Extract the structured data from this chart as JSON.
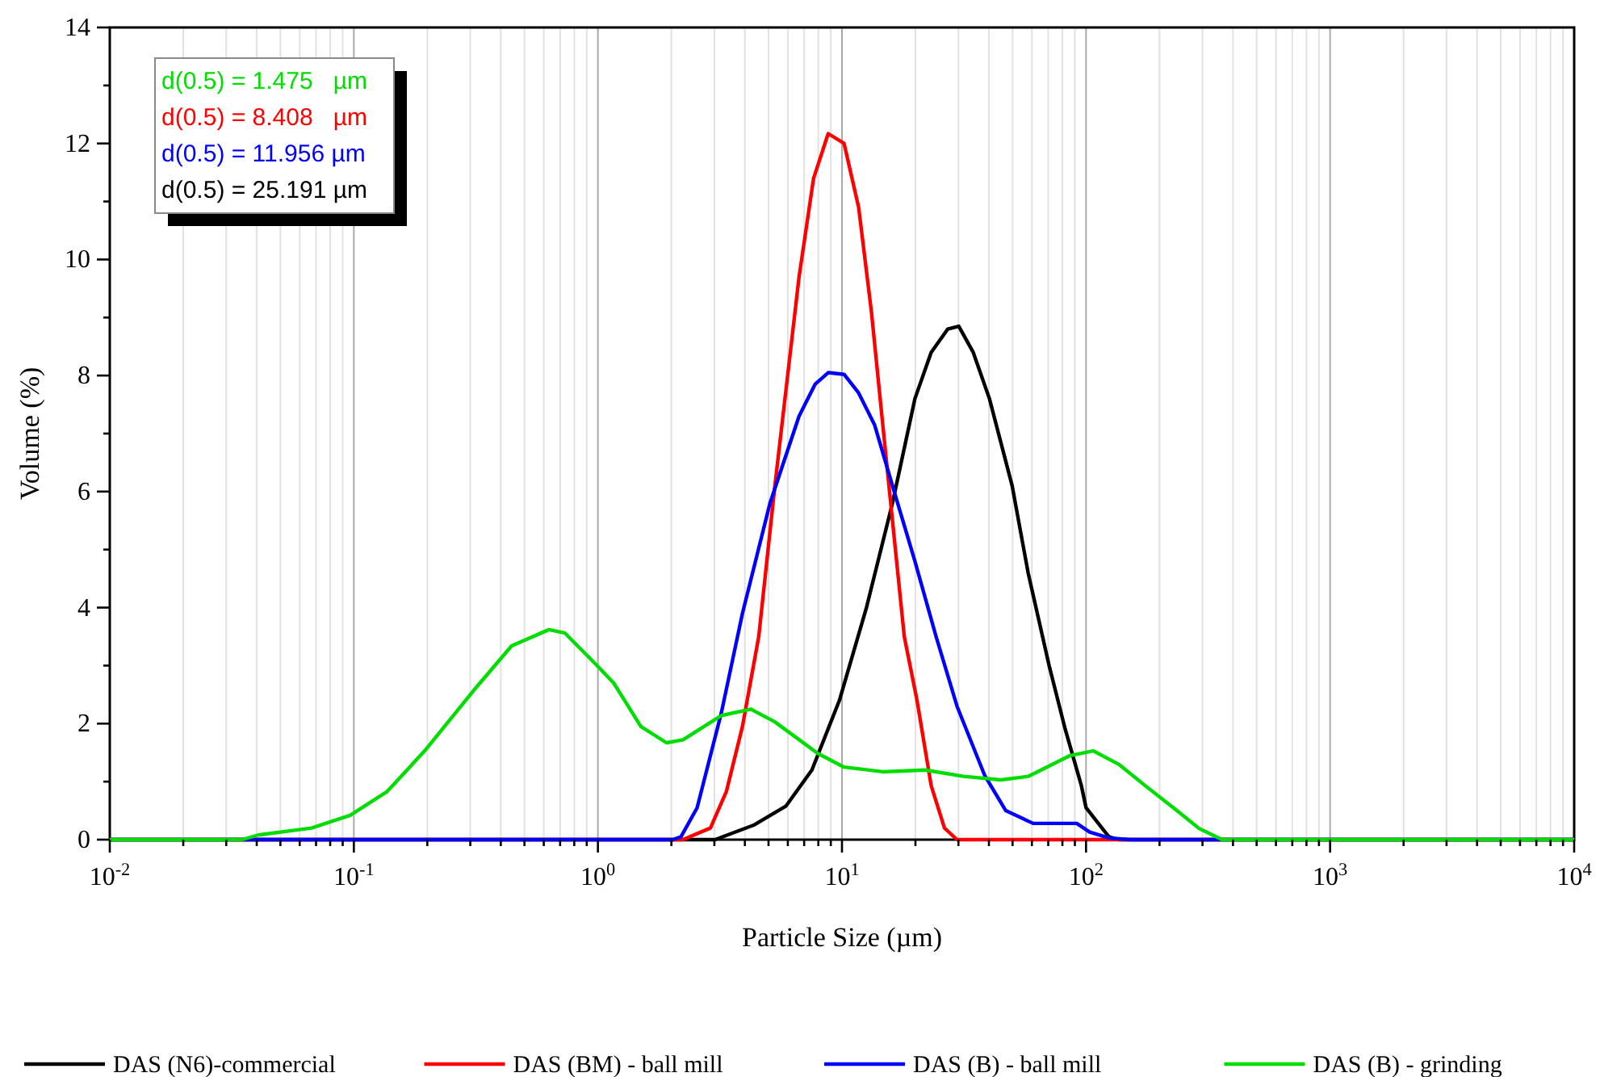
{
  "chart_data": {
    "type": "line",
    "xlabel": "Particle Size (µm)",
    "ylabel": "Volume (%)",
    "log": "x",
    "grid": "x",
    "legend": "bottom",
    "marker": "none",
    "line_style": "solid",
    "xlim": [
      0.01,
      10000
    ],
    "ylim": [
      0,
      14
    ],
    "xticks": [
      {
        "value": 0.01,
        "label": "10$^{-2}$"
      },
      {
        "value": 0.02,
        "label": null
      },
      {
        "value": 0.03,
        "label": null
      },
      {
        "value": 0.04,
        "label": null
      },
      {
        "value": 0.05,
        "label": null
      },
      {
        "value": 0.06,
        "label": null
      },
      {
        "value": 0.07,
        "label": null
      },
      {
        "value": 0.08,
        "label": null
      },
      {
        "value": 0.09,
        "label": null
      },
      {
        "value": 0.1,
        "label": "10$^{-1}$"
      },
      {
        "value": 0.2,
        "label": null
      },
      {
        "value": 0.3,
        "label": null
      },
      {
        "value": 0.4,
        "label": null
      },
      {
        "value": 0.5,
        "label": null
      },
      {
        "value": 0.6,
        "label": null
      },
      {
        "value": 0.7,
        "label": null
      },
      {
        "value": 0.8,
        "label": null
      },
      {
        "value": 0.9,
        "label": null
      },
      {
        "value": 1,
        "label": "10$^{0}$"
      },
      {
        "value": 2,
        "label": null
      },
      {
        "value": 3,
        "label": null
      },
      {
        "value": 4,
        "label": null
      },
      {
        "value": 5,
        "label": null
      },
      {
        "value": 6,
        "label": null
      },
      {
        "value": 7,
        "label": null
      },
      {
        "value": 8,
        "label": null
      },
      {
        "value": 9,
        "label": null
      },
      {
        "value": 10,
        "label": "10$^{1}$"
      },
      {
        "value": 20,
        "label": null
      },
      {
        "value": 30,
        "label": null
      },
      {
        "value": 40,
        "label": null
      },
      {
        "value": 50,
        "label": null
      },
      {
        "value": 60,
        "label": null
      },
      {
        "value": 70,
        "label": null
      },
      {
        "value": 80,
        "label": null
      },
      {
        "value": 90,
        "label": null
      },
      {
        "value": 100,
        "label": "10$^{2}$"
      },
      {
        "value": 200,
        "label": null
      },
      {
        "value": 300,
        "label": null
      },
      {
        "value": 400,
        "label": null
      },
      {
        "value": 500,
        "label": null
      },
      {
        "value": 600,
        "label": null
      },
      {
        "value": 700,
        "label": null
      },
      {
        "value": 800,
        "label": null
      },
      {
        "value": 900,
        "label": null
      },
      {
        "value": 1000,
        "label": "10$^{3}$"
      },
      {
        "value": 2000,
        "label": null
      },
      {
        "value": 3000,
        "label": null
      },
      {
        "value": 4000,
        "label": null
      },
      {
        "value": 5000,
        "label": null
      },
      {
        "value": 6000,
        "label": null
      },
      {
        "value": 7000,
        "label": null
      },
      {
        "value": 8000,
        "label": null
      },
      {
        "value": 9000,
        "label": null
      },
      {
        "value": 10000,
        "label": "10$^{4}$"
      }
    ],
    "yticks": [
      0,
      {
        "value": 1,
        "label": null
      },
      2,
      {
        "value": 3,
        "label": null
      },
      4,
      {
        "value": 5,
        "label": null
      },
      6,
      {
        "value": 7,
        "label": null
      },
      8,
      {
        "value": 9,
        "label": null
      },
      10,
      {
        "value": 11,
        "label": null
      },
      12,
      {
        "value": 13,
        "label": null
      },
      14
    ],
    "annotations": [
      "d(0.5) = 1.475   µm",
      "d(0.5) = 8.408   µm",
      "d(0.5) = 11.956 µm",
      "d(0.5) = 25.191 µm"
    ],
    "series": [
      {
        "name": "DAS (N6)-commercial",
        "color": "#000000",
        "x": [
          0.01,
          3.02,
          4.35,
          5.9,
          7.53,
          9.76,
          12.6,
          16.1,
          19.9,
          23.2,
          27.1,
          30.1,
          34.5,
          40.2,
          49.8,
          57.9,
          70.6,
          82.2,
          95.7,
          100,
          124,
          136,
          10000
        ],
        "values": [
          0,
          0,
          0.25,
          0.58,
          1.2,
          2.4,
          4.0,
          5.8,
          7.6,
          8.4,
          8.8,
          8.85,
          8.4,
          7.6,
          6.1,
          4.6,
          3.0,
          1.9,
          0.93,
          0.55,
          0.05,
          0,
          0
        ]
      },
      {
        "name": "DAS (BM) - ball mill",
        "color": "#ff0000",
        "x": [
          0.01,
          2.23,
          2.89,
          3.36,
          3.91,
          4.56,
          5.31,
          6.67,
          7.65,
          8.78,
          10.2,
          11.7,
          13.2,
          15.4,
          18,
          20.3,
          23.2,
          26.3,
          29.6,
          10000
        ],
        "values": [
          0,
          0,
          0.2,
          0.83,
          1.95,
          3.5,
          6.1,
          9.7,
          11.4,
          12.17,
          12.0,
          10.9,
          9.1,
          6.3,
          3.5,
          2.4,
          0.93,
          0.2,
          0,
          0
        ]
      },
      {
        "name": "DAS (B) - ball mill",
        "color": "#0000ff",
        "x": [
          0.01,
          2.03,
          2.19,
          2.55,
          3.21,
          3.91,
          5.07,
          6.67,
          7.76,
          8.78,
          10.2,
          11.7,
          13.6,
          16.1,
          19.9,
          24.3,
          29.6,
          38.5,
          46.9,
          60.7,
          91.6,
          103.5,
          124,
          151,
          10000
        ],
        "values": [
          0,
          0,
          0.05,
          0.55,
          2.2,
          3.9,
          5.8,
          7.3,
          7.85,
          8.05,
          8.02,
          7.7,
          7.15,
          6.1,
          4.8,
          3.5,
          2.3,
          1.1,
          0.5,
          0.28,
          0.28,
          0.13,
          0.03,
          0,
          0
        ]
      },
      {
        "name": "DAS (B) - grinding",
        "color": "#00dd00",
        "x": [
          0.01,
          0.0348,
          0.0406,
          0.0671,
          0.0966,
          0.137,
          0.195,
          0.308,
          0.443,
          0.63,
          0.733,
          0.993,
          1.16,
          1.5,
          1.91,
          2.23,
          3.21,
          4.23,
          5.31,
          8.0,
          10.2,
          14.7,
          21.9,
          31.5,
          44.8,
          57.9,
          86.1,
          107,
          136,
          176,
          228,
          291,
          361,
          10000
        ],
        "values": [
          0,
          0,
          0.08,
          0.2,
          0.42,
          0.83,
          1.53,
          2.56,
          3.34,
          3.62,
          3.56,
          3.0,
          2.7,
          1.95,
          1.67,
          1.72,
          2.14,
          2.25,
          2.03,
          1.48,
          1.25,
          1.17,
          1.2,
          1.09,
          1.03,
          1.09,
          1.45,
          1.53,
          1.3,
          0.92,
          0.55,
          0.19,
          0,
          0
        ]
      }
    ]
  }
}
